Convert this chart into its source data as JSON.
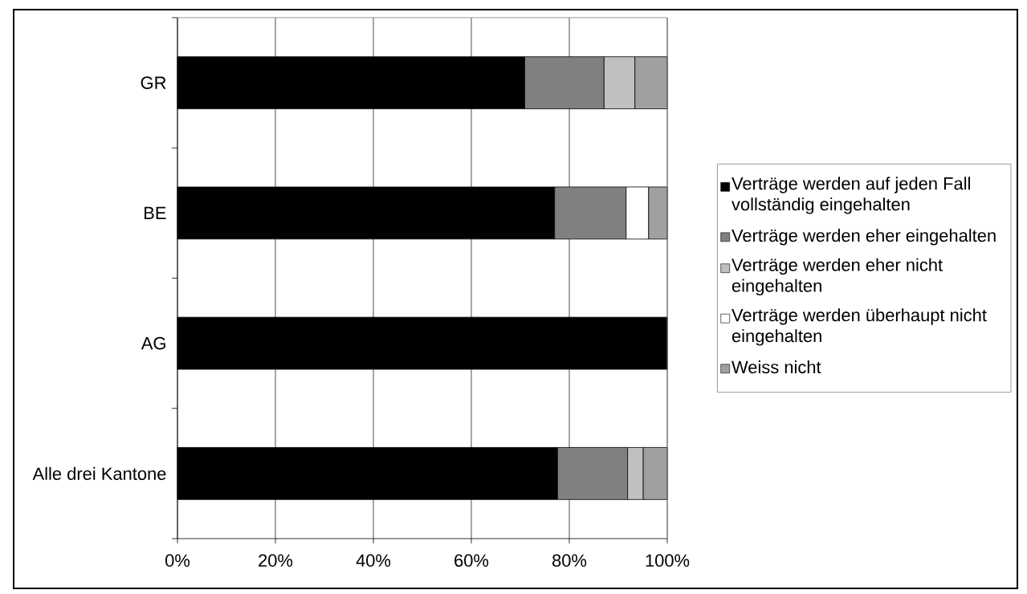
{
  "chart_data": {
    "type": "bar",
    "orientation": "horizontal",
    "stacked": true,
    "categories": [
      "GR",
      "BE",
      "AG",
      "Alle drei Kantone"
    ],
    "series": [
      {
        "name": "Verträge werden auf jeden Fall vollständig eingehalten",
        "color": "#000000",
        "values": [
          70.9,
          77,
          100,
          77.6
        ]
      },
      {
        "name": "Verträge werden eher eingehalten",
        "color": "#808080",
        "values": [
          16.2,
          14.6,
          0,
          14.3
        ]
      },
      {
        "name": "Verträge werden eher nicht eingehalten",
        "color": "#c0c0c0",
        "values": [
          6.3,
          0,
          0,
          3.2
        ]
      },
      {
        "name": "Verträge werden überhaupt nicht eingehalten",
        "color": "#ffffff",
        "values": [
          0,
          4.6,
          0,
          0
        ]
      },
      {
        "name": "Weiss nicht",
        "color": "#a0a0a0",
        "values": [
          6.6,
          3.8,
          0,
          4.9
        ]
      }
    ],
    "xlim": [
      0,
      100
    ],
    "xticks": [
      {
        "value": 0,
        "label": "0%"
      },
      {
        "value": 20,
        "label": "20%"
      },
      {
        "value": 40,
        "label": "40%"
      },
      {
        "value": 60,
        "label": "60%"
      },
      {
        "value": 80,
        "label": "80%"
      },
      {
        "value": 100,
        "label": "100%"
      }
    ],
    "grid": "x",
    "legend": "right"
  }
}
